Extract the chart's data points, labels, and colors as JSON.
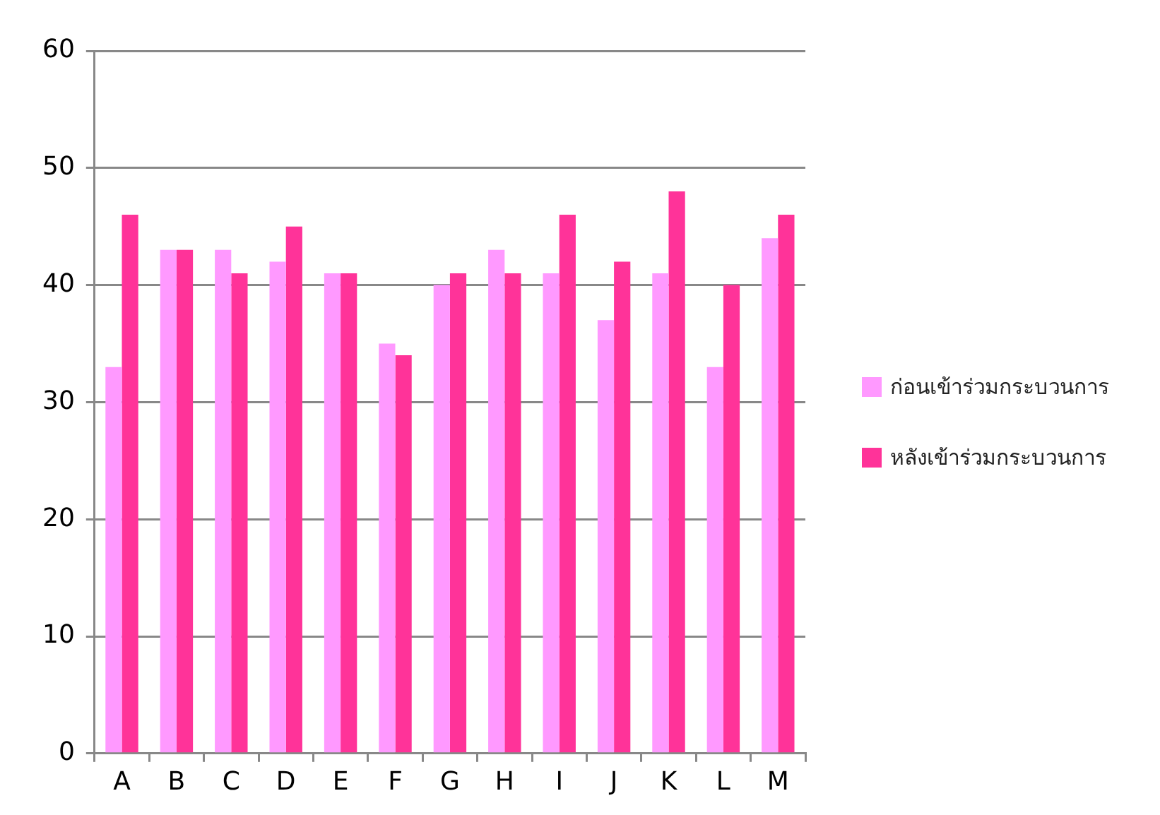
{
  "chart_data": {
    "type": "bar",
    "categories": [
      "A",
      "B",
      "C",
      "D",
      "E",
      "F",
      "G",
      "H",
      "I",
      "J",
      "K",
      "L",
      "M"
    ],
    "series": [
      {
        "name": "ก่อนเข้าร่วมกระบวนการ",
        "color": "#ff99ff",
        "values": [
          33,
          43,
          43,
          42,
          41,
          35,
          40,
          43,
          41,
          37,
          41,
          33,
          44
        ]
      },
      {
        "name": "หลังเข้าร่วมกระบวนการ",
        "color": "#ff3399",
        "values": [
          46,
          43,
          41,
          45,
          41,
          34,
          41,
          41,
          46,
          42,
          48,
          40,
          46
        ]
      }
    ],
    "ylim": [
      0,
      60
    ],
    "yticks": [
      0,
      10,
      20,
      30,
      40,
      50,
      60
    ],
    "grid": "y",
    "legend": "right"
  }
}
